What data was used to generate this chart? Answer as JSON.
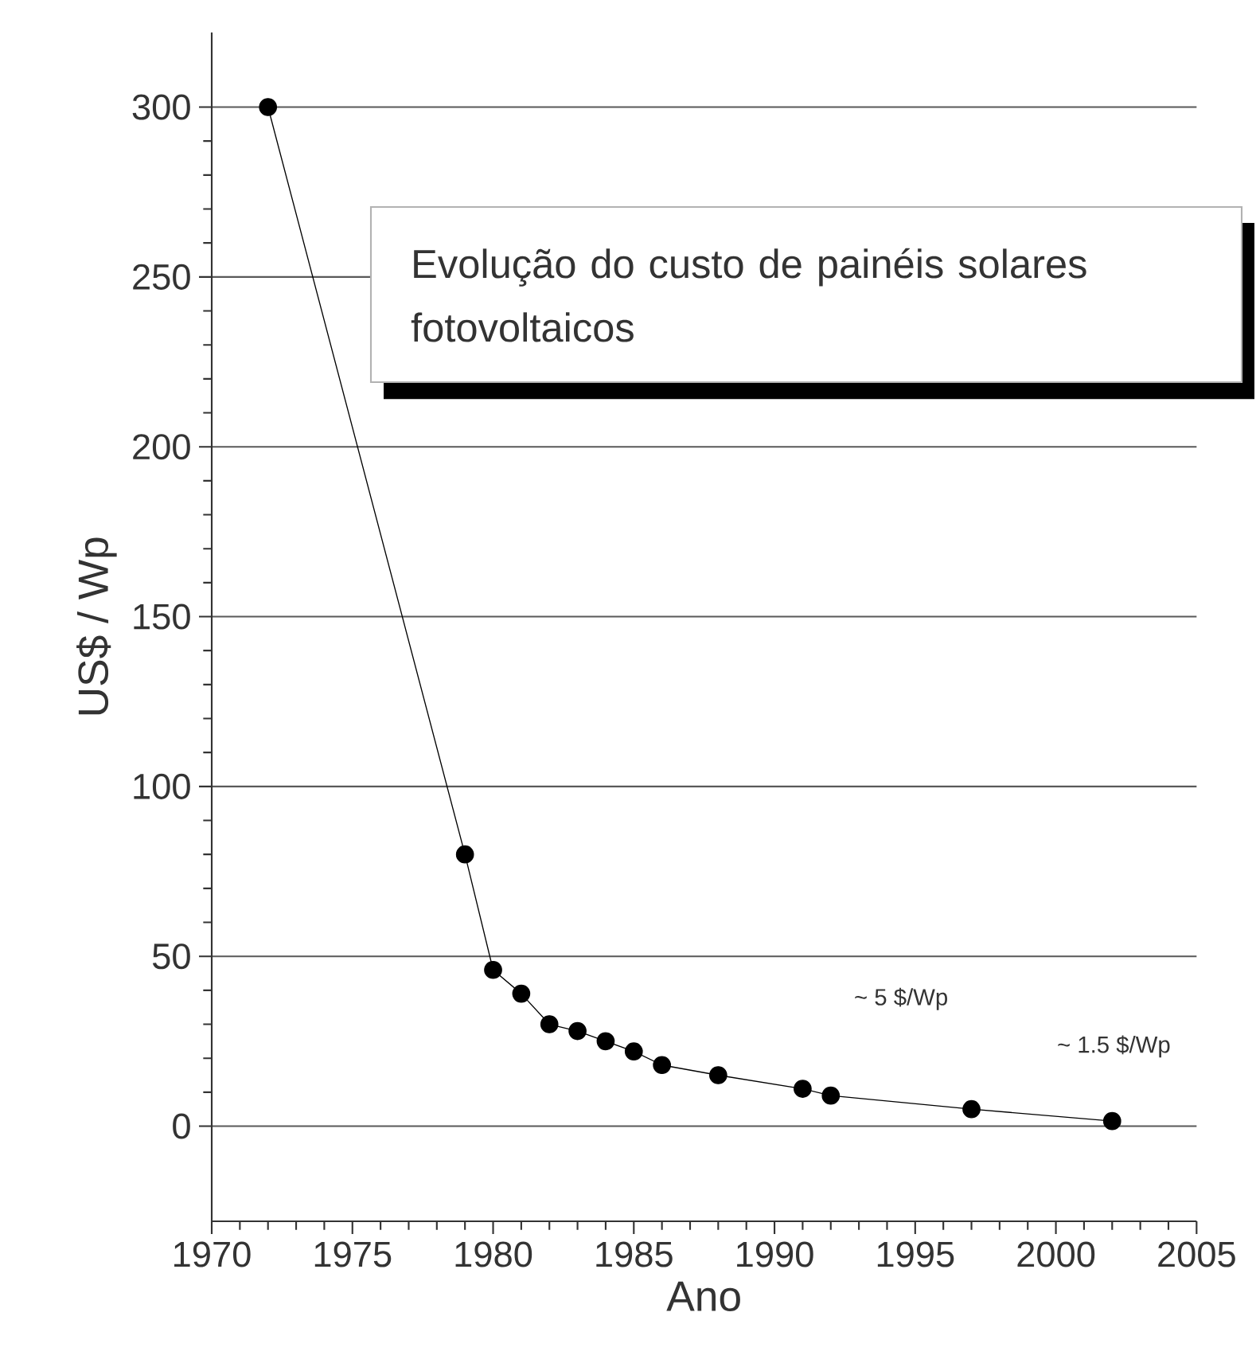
{
  "chart_data": {
    "type": "line",
    "title": "Evolução do custo de painéis solares fotovoltaicos",
    "xlabel": "Ano",
    "ylabel": "US$ / Wp",
    "x": [
      1972,
      1979,
      1980,
      1981,
      1982,
      1983,
      1984,
      1985,
      1986,
      1988,
      1991,
      1992,
      1997,
      2002
    ],
    "series": [
      {
        "color": "#000000",
        "values": [
          300,
          80,
          46,
          39,
          30,
          28,
          25,
          22,
          18,
          15,
          11,
          9,
          5,
          1.5
        ]
      }
    ],
    "xlim": [
      1970,
      2005
    ],
    "ylim": [
      -28,
      322
    ],
    "xticks": [
      1970,
      1975,
      1980,
      1985,
      1990,
      1995,
      2000,
      2005
    ],
    "yticks": [
      0,
      50,
      100,
      150,
      200,
      250,
      300
    ],
    "grid": "y",
    "marker": "circle",
    "line_style": "solid",
    "annotations": [
      "~ 5 $/Wp",
      "~ 1.5 $/Wp"
    ]
  }
}
